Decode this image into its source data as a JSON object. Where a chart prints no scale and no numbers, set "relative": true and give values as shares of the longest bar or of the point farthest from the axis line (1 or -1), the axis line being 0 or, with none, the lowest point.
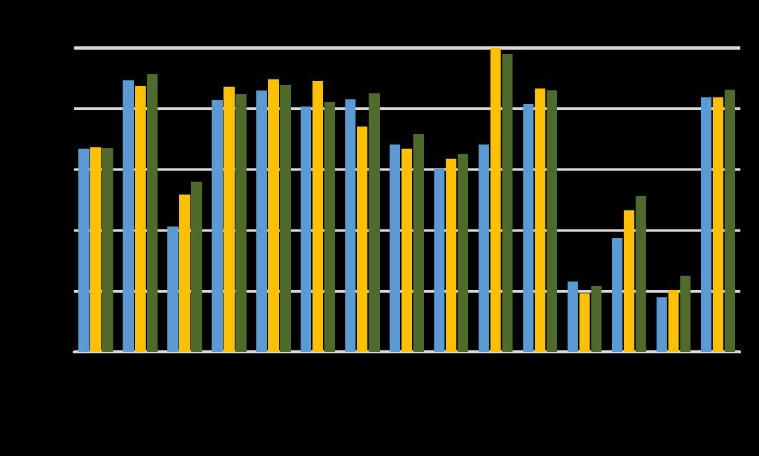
{
  "chart_data": {
    "type": "bar",
    "relative": true,
    "grid": "y",
    "categories": [
      null,
      null,
      null,
      null,
      null,
      null,
      null,
      null,
      null,
      null,
      null,
      null,
      null,
      null,
      null
    ],
    "series": [
      {
        "color": "#5b9bd5",
        "values": [
          0.669,
          0.894,
          0.412,
          0.829,
          0.859,
          0.807,
          0.831,
          0.683,
          0.605,
          0.683,
          0.816,
          0.233,
          0.375,
          0.181,
          0.839
        ]
      },
      {
        "color": "#ffc000",
        "values": [
          0.673,
          0.874,
          0.517,
          0.872,
          0.897,
          0.892,
          0.741,
          0.669,
          0.635,
          1,
          0.867,
          0.194,
          0.465,
          0.204,
          0.839
        ]
      },
      {
        "color": "#4e6b2c",
        "values": [
          0.671,
          0.915,
          0.561,
          0.849,
          0.879,
          0.824,
          0.852,
          0.716,
          0.653,
          0.98,
          0.86,
          0.216,
          0.513,
          0.251,
          0.864
        ]
      }
    ]
  }
}
